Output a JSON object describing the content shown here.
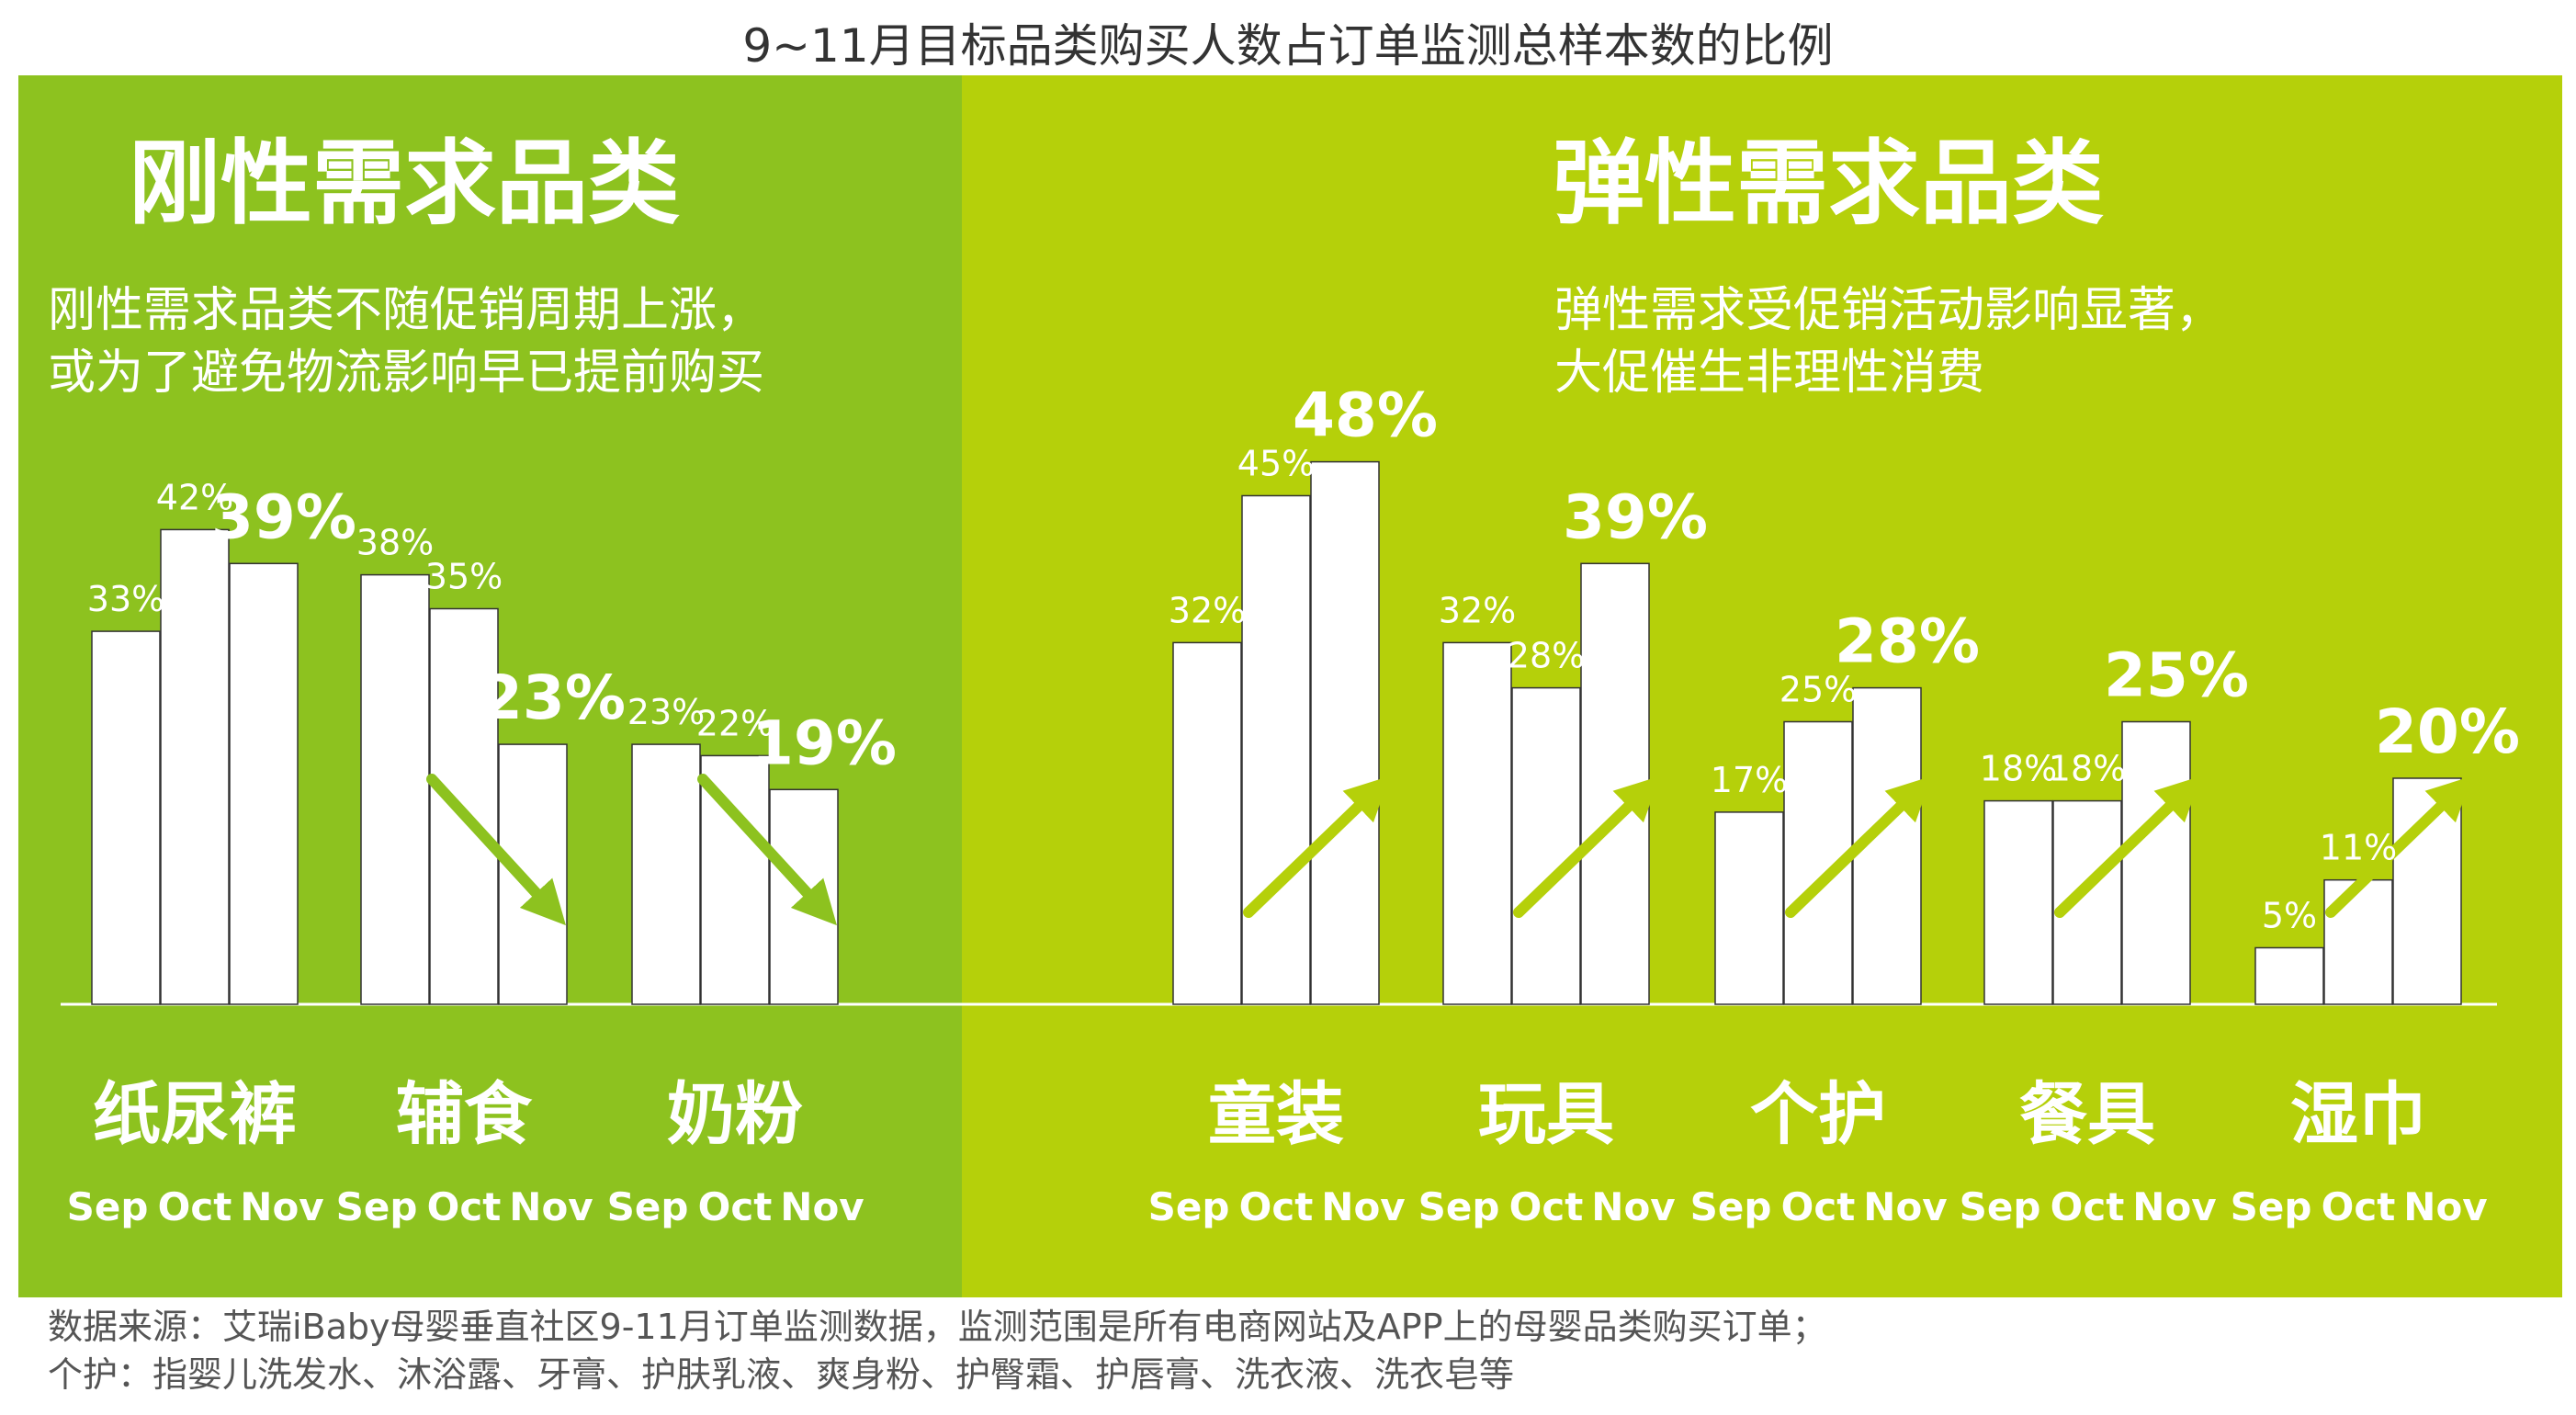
{
  "title": "9~11月目标品类购买人数占订单监测总样本数的比例",
  "panels": {
    "left": {
      "title": "刚性需求品类",
      "subtitle_lines": [
        "刚性需求品类不随促销周期上涨，",
        "或为了避免物流影响早已提前购买"
      ],
      "bg_color": "#8dc21f"
    },
    "right": {
      "title": "弹性需求品类",
      "subtitle_lines": [
        "弹性需求受促销活动影响显著，",
        "大促催生非理性消费"
      ],
      "bg_color": "#b5d00a"
    }
  },
  "colors": {
    "bar": "#ffffff",
    "arrow_left": "#8dc21f",
    "arrow_right": "#b5d00a",
    "text": "#ffffff"
  },
  "chart_data": {
    "type": "bar",
    "months": [
      "Sep",
      "Oct",
      "Nov"
    ],
    "unit": "%",
    "ylim": [
      0,
      60
    ],
    "groups": [
      {
        "name": "纸尿裤",
        "panel": "left",
        "values": [
          33,
          42,
          39
        ],
        "trend": "none"
      },
      {
        "name": "辅食",
        "panel": "left",
        "values": [
          38,
          35,
          23
        ],
        "trend": "down"
      },
      {
        "name": "奶粉",
        "panel": "left",
        "values": [
          23,
          22,
          19
        ],
        "trend": "down"
      },
      {
        "name": "童装",
        "panel": "right",
        "values": [
          32,
          45,
          48
        ],
        "trend": "up"
      },
      {
        "name": "玩具",
        "panel": "right",
        "values": [
          32,
          28,
          39
        ],
        "trend": "up"
      },
      {
        "name": "个护",
        "panel": "right",
        "values": [
          17,
          25,
          28
        ],
        "trend": "up"
      },
      {
        "name": "餐具",
        "panel": "right",
        "values": [
          18,
          18,
          25
        ],
        "trend": "up"
      },
      {
        "name": "湿巾",
        "panel": "right",
        "values": [
          5,
          11,
          20
        ],
        "trend": "up"
      }
    ]
  },
  "footer": {
    "line1": "数据来源：艾瑞iBaby母婴垂直社区9-11月订单监测数据，监测范围是所有电商网站及APP上的母婴品类购买订单；",
    "line2": "个护：指婴儿洗发水、沐浴露、牙膏、护肤乳液、爽身粉、护臀霜、护唇膏、洗衣液、洗衣皂等"
  }
}
